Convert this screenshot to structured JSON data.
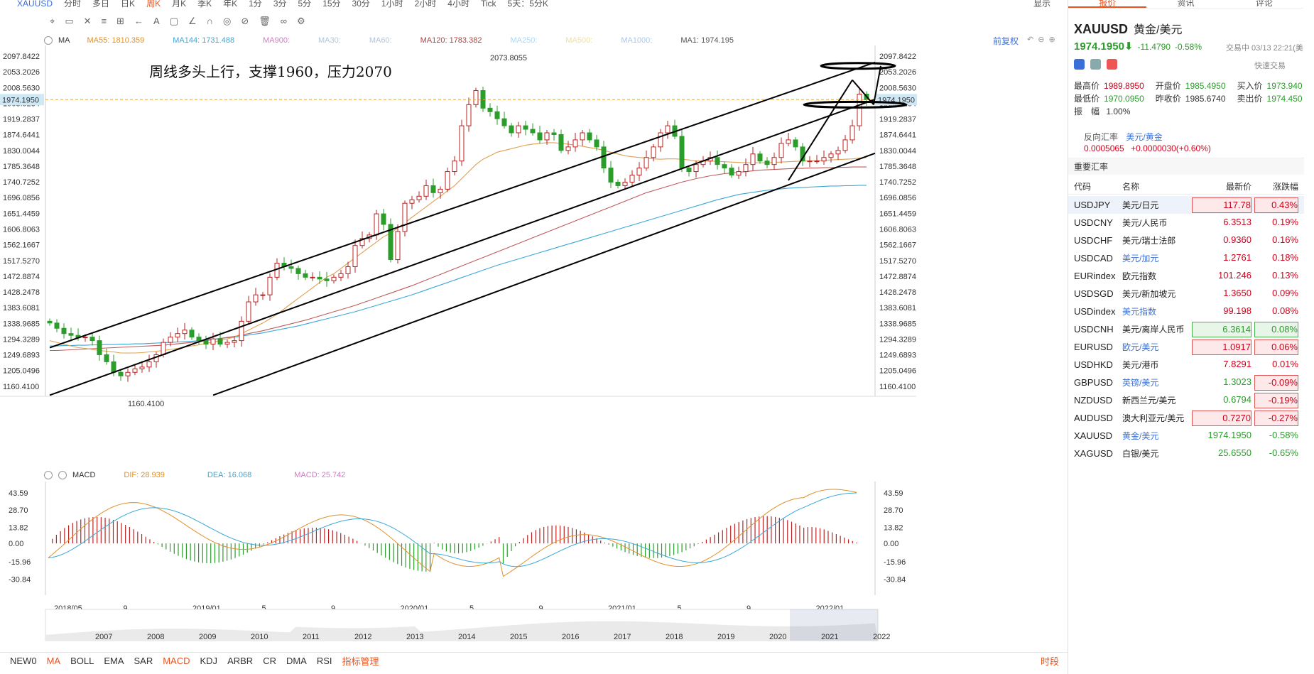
{
  "toolbar": {
    "symbol": "XAUUSD",
    "periods": [
      "分时",
      "多日",
      "日K",
      "周K",
      "月K",
      "季K",
      "年K",
      "1分",
      "3分",
      "5分",
      "15分",
      "30分",
      "1小时",
      "2小时",
      "4小时",
      "Tick",
      "5天：5分K"
    ],
    "active_period": "周K",
    "display_label": "显示"
  },
  "legend_ma": {
    "name": "MA",
    "items": [
      {
        "label": "MA55: 1810.359",
        "color": "#e0902a"
      },
      {
        "label": "MA144: 1731.488",
        "color": "#3aa8d8"
      },
      {
        "label": "MA900:",
        "color": "#d877c8"
      },
      {
        "label": "MA30:",
        "color": "#a8c8e8"
      },
      {
        "label": "MA60:",
        "color": "#a8c8e8"
      },
      {
        "label": "MA120: 1783.382",
        "color": "#c03a3a"
      },
      {
        "label": "MA250:",
        "color": "#a8d8f8"
      },
      {
        "label": "MA500:",
        "color": "#f0e0a0"
      },
      {
        "label": "MA1000:",
        "color": "#a8c8e8"
      },
      {
        "label": "MA1: 1974.195",
        "color": "#555555"
      }
    ],
    "fq_label": "前复权"
  },
  "legend_macd": {
    "name": "MACD",
    "items": [
      {
        "label": "DIF: 28.939",
        "color": "#e0902a"
      },
      {
        "label": "DEA: 16.068",
        "color": "#3aa8d8"
      },
      {
        "label": "MACD: 25.742",
        "color": "#d877c8"
      }
    ]
  },
  "annotation": "周线多头上行，支撑1960，压力2070",
  "chart_data": [
    {
      "type": "candlestick",
      "title": "",
      "y_ticks": [
        2097.8422,
        2053.2026,
        2008.563,
        1963.9234,
        1919.2837,
        1874.6441,
        1830.0044,
        1785.3648,
        1740.7252,
        1696.0856,
        1651.4459,
        1606.8063,
        1562.1667,
        1517.527,
        1472.8874,
        1428.2478,
        1383.6081,
        1338.9685,
        1294.3289,
        1249.6893,
        1205.0496,
        1160.41
      ],
      "y_tick_labels": [
        "2097.8422",
        "2053.2026",
        "2008.5630",
        "1963.9234",
        "1919.2837",
        "1874.6441",
        "1830.0044",
        "1785.3648",
        "1740.7252",
        "1696.0856",
        "1651.4459",
        "1606.8063",
        "1562.1667",
        "1517.5270",
        "1472.8874",
        "1428.2478",
        "1383.6081",
        "1338.9685",
        "1294.3289",
        "1249.6893",
        "1205.0496",
        "1160.4100"
      ],
      "ylim": [
        1140,
        2120
      ],
      "current_price": 1974.195,
      "current_price_label": "1974.1950",
      "high_label": "2073.8055",
      "high_value": 2073.8055,
      "low_label": "1160.4100",
      "low_value": 1160.41,
      "x_labels": [
        "2018/05",
        "9",
        "2019/01",
        "5",
        "9",
        "2020/01",
        "5",
        "9",
        "2021/01",
        "5",
        "9",
        "2022/01"
      ],
      "closes": [
        1340,
        1325,
        1310,
        1305,
        1298,
        1300,
        1290,
        1250,
        1230,
        1200,
        1190,
        1200,
        1210,
        1215,
        1230,
        1250,
        1285,
        1300,
        1310,
        1320,
        1300,
        1290,
        1280,
        1295,
        1280,
        1285,
        1290,
        1345,
        1400,
        1420,
        1420,
        1470,
        1510,
        1500,
        1495,
        1480,
        1470,
        1470,
        1465,
        1460,
        1470,
        1480,
        1500,
        1560,
        1580,
        1590,
        1650,
        1620,
        1520,
        1600,
        1680,
        1690,
        1700,
        1730,
        1710,
        1720,
        1770,
        1800,
        1900,
        1960,
        2000,
        1950,
        1940,
        1920,
        1900,
        1880,
        1900,
        1890,
        1880,
        1860,
        1880,
        1875,
        1830,
        1840,
        1860,
        1880,
        1860,
        1840,
        1780,
        1740,
        1730,
        1740,
        1760,
        1780,
        1810,
        1840,
        1880,
        1900,
        1870,
        1780,
        1770,
        1790,
        1800,
        1810,
        1790,
        1780,
        1760,
        1770,
        1790,
        1820,
        1800,
        1790,
        1810,
        1850,
        1860,
        1840,
        1800,
        1800,
        1800,
        1810,
        1820,
        1830,
        1860,
        1900,
        1990,
        1974
      ],
      "ma55": [
        1290,
        1285,
        1280,
        1275,
        1270,
        1268,
        1265,
        1262,
        1260,
        1258,
        1255,
        1255,
        1255,
        1256,
        1258,
        1260,
        1262,
        1265,
        1268,
        1272,
        1275,
        1278,
        1282,
        1286,
        1290,
        1295,
        1300,
        1310,
        1320,
        1330,
        1340,
        1352,
        1365,
        1380,
        1395,
        1410,
        1425,
        1440,
        1455,
        1470,
        1480,
        1495,
        1510,
        1525,
        1540,
        1555,
        1570,
        1585,
        1595,
        1610,
        1625,
        1640,
        1655,
        1670,
        1685,
        1700,
        1715,
        1730,
        1750,
        1770,
        1790,
        1805,
        1815,
        1825,
        1830,
        1835,
        1840,
        1845,
        1848,
        1850,
        1852,
        1852,
        1850,
        1848,
        1845,
        1842,
        1838,
        1835,
        1830,
        1825,
        1820,
        1815,
        1812,
        1810,
        1808,
        1806,
        1805,
        1806,
        1806,
        1805,
        1803,
        1800,
        1800,
        1800,
        1799,
        1798,
        1797,
        1796,
        1795,
        1795,
        1795,
        1795,
        1796,
        1797,
        1798,
        1799,
        1800,
        1800,
        1801,
        1802,
        1803,
        1804,
        1805,
        1806,
        1808,
        1810
      ],
      "ma144": [
        1275,
        1275,
        1276,
        1276,
        1277,
        1277,
        1278,
        1278,
        1279,
        1279,
        1280,
        1280,
        1281,
        1281,
        1282,
        1283,
        1284,
        1285,
        1286,
        1287,
        1288,
        1290,
        1292,
        1294,
        1296,
        1298,
        1300,
        1303,
        1306,
        1309,
        1312,
        1316,
        1320,
        1324,
        1328,
        1332,
        1337,
        1342,
        1347,
        1352,
        1357,
        1362,
        1367,
        1372,
        1378,
        1384,
        1390,
        1396,
        1402,
        1408,
        1414,
        1420,
        1427,
        1434,
        1441,
        1448,
        1455,
        1462,
        1469,
        1476,
        1483,
        1490,
        1497,
        1504,
        1510,
        1516,
        1522,
        1528,
        1534,
        1540,
        1546,
        1552,
        1558,
        1564,
        1570,
        1576,
        1582,
        1588,
        1594,
        1600,
        1606,
        1612,
        1618,
        1624,
        1630,
        1636,
        1642,
        1648,
        1654,
        1660,
        1666,
        1672,
        1678,
        1684,
        1690,
        1695,
        1700,
        1705,
        1708,
        1711,
        1714,
        1717,
        1719,
        1721,
        1723,
        1724,
        1725,
        1726,
        1727,
        1728,
        1729,
        1729,
        1730,
        1730,
        1731,
        1731
      ],
      "ma120": [
        1262,
        1262,
        1263,
        1264,
        1265,
        1266,
        1267,
        1268,
        1269,
        1270,
        1271,
        1272,
        1273,
        1274,
        1275,
        1276,
        1277,
        1279,
        1281,
        1283,
        1285,
        1287,
        1290,
        1293,
        1296,
        1299,
        1302,
        1306,
        1310,
        1314,
        1318,
        1323,
        1328,
        1333,
        1338,
        1343,
        1348,
        1354,
        1360,
        1366,
        1372,
        1378,
        1384,
        1390,
        1397,
        1404,
        1411,
        1418,
        1425,
        1432,
        1439,
        1446,
        1454,
        1462,
        1470,
        1478,
        1486,
        1494,
        1502,
        1510,
        1518,
        1526,
        1534,
        1542,
        1550,
        1558,
        1566,
        1574,
        1582,
        1590,
        1598,
        1606,
        1614,
        1622,
        1630,
        1638,
        1646,
        1654,
        1662,
        1670,
        1678,
        1686,
        1694,
        1702,
        1710,
        1716,
        1722,
        1728,
        1734,
        1740,
        1745,
        1750,
        1754,
        1758,
        1761,
        1764,
        1766,
        1768,
        1770,
        1772,
        1774,
        1775,
        1776,
        1777,
        1778,
        1779,
        1779,
        1780,
        1780,
        1781,
        1781,
        1782,
        1782,
        1783,
        1783,
        1783
      ]
    },
    {
      "type": "macd",
      "y_ticks": [
        43.59,
        28.7,
        13.82,
        0.0,
        -15.96,
        -30.84
      ],
      "y_tick_labels": [
        "43.59",
        "28.70",
        "13.82",
        "0.00",
        "-15.96",
        "-30.84"
      ],
      "ylim": [
        -36,
        52
      ],
      "dif_last": 28.939,
      "dea_last": 16.068,
      "macd_last": 25.742
    },
    {
      "type": "area",
      "name": "navigator",
      "x_labels": [
        "2007",
        "2008",
        "2009",
        "2010",
        "2011",
        "2012",
        "2013",
        "2014",
        "2015",
        "2016",
        "2017",
        "2018",
        "2019",
        "2020",
        "2021",
        "2022"
      ]
    }
  ],
  "indicator_bar": {
    "items": [
      "NEW0",
      "MA",
      "BOLL",
      "EMA",
      "SAR",
      "MACD",
      "KDJ",
      "ARBR",
      "CR",
      "DMA",
      "RSI"
    ],
    "hot": [
      "MA",
      "MACD"
    ],
    "manage": "指标管理",
    "time_segment": "时段"
  },
  "panel": {
    "tabs": [
      "报价",
      "资讯",
      "评论"
    ],
    "active_tab": "报价",
    "symbol": "XAUUSD",
    "symbol_cn": "黄金/美元",
    "price": "1974.1950",
    "change": "-11.4790",
    "change_pct": "-0.58%",
    "status": "交易中 03/13 22:21(美",
    "quick_trade": "快速交易",
    "stats": [
      [
        {
          "k": "最高价",
          "v": "1989.8950",
          "c": "red"
        },
        {
          "k": "开盘价",
          "v": "1985.4950",
          "c": "green"
        },
        {
          "k": "买入价",
          "v": "1973.940",
          "c": "green"
        }
      ],
      [
        {
          "k": "最低价",
          "v": "1970.0950",
          "c": "green"
        },
        {
          "k": "昨收价",
          "v": "1985.6740",
          "c": "plain"
        },
        {
          "k": "卖出价",
          "v": "1974.450",
          "c": "green"
        }
      ]
    ],
    "amplitude_label": "振　幅",
    "amplitude": "1.00%",
    "reverse_label": "反向汇率",
    "reverse_pair": "美元/黄金",
    "reverse_value": "0.0005065",
    "reverse_change": "+0.0000030(+0.60%)",
    "important_label": "重要汇率",
    "headers": {
      "code": "代码",
      "name": "名称",
      "price": "最新价",
      "pct": "涨跌幅"
    },
    "rates": [
      {
        "code": "USDJPY",
        "name": "美元/日元",
        "price": "117.78",
        "pct": "0.43%",
        "style": "red-b",
        "name_link": false,
        "selected": true
      },
      {
        "code": "USDCNY",
        "name": "美元/人民币",
        "price": "6.3513",
        "pct": "0.19%",
        "style": "plain-r",
        "name_link": false
      },
      {
        "code": "USDCHF",
        "name": "美元/瑞士法郎",
        "price": "0.9360",
        "pct": "0.16%",
        "style": "plain-r",
        "name_link": false
      },
      {
        "code": "USDCAD",
        "name": "美元/加元",
        "price": "1.2761",
        "pct": "0.18%",
        "style": "plain-r",
        "name_link": true
      },
      {
        "code": "EURindex",
        "name": "欧元指数",
        "price": "101.246",
        "pct": "0.13%",
        "style": "plain-r",
        "name_link": false
      },
      {
        "code": "USDSGD",
        "name": "美元/新加坡元",
        "price": "1.3650",
        "pct": "0.09%",
        "style": "plain-r",
        "name_link": false
      },
      {
        "code": "USDindex",
        "name": "美元指数",
        "price": "99.198",
        "pct": "0.08%",
        "style": "plain-r",
        "name_link": true
      },
      {
        "code": "USDCNH",
        "name": "美元/离岸人民币",
        "price": "6.3614",
        "pct": "0.08%",
        "style": "green-b",
        "name_link": false
      },
      {
        "code": "EURUSD",
        "name": "欧元/美元",
        "price": "1.0917",
        "pct": "0.06%",
        "style": "red-b",
        "name_link": true
      },
      {
        "code": "USDHKD",
        "name": "美元/港币",
        "price": "7.8291",
        "pct": "0.01%",
        "style": "plain-r",
        "name_link": false
      },
      {
        "code": "GBPUSD",
        "name": "英镑/美元",
        "price": "1.3023",
        "pct": "-0.09%",
        "style": "plain-g",
        "pct_box": "red-b",
        "name_link": true
      },
      {
        "code": "NZDUSD",
        "name": "新西兰元/美元",
        "price": "0.6794",
        "pct": "-0.19%",
        "style": "plain-g",
        "pct_box": "red-b",
        "name_link": false
      },
      {
        "code": "AUDUSD",
        "name": "澳大利亚元/美元",
        "price": "0.7270",
        "pct": "-0.27%",
        "style": "red-b",
        "name_link": false
      },
      {
        "code": "XAUUSD",
        "name": "黄金/美元",
        "price": "1974.1950",
        "pct": "-0.58%",
        "style": "plain-g",
        "name_link": true
      },
      {
        "code": "XAGUSD",
        "name": "白银/美元",
        "price": "25.6550",
        "pct": "-0.65%",
        "style": "plain-g",
        "name_link": false
      }
    ]
  }
}
